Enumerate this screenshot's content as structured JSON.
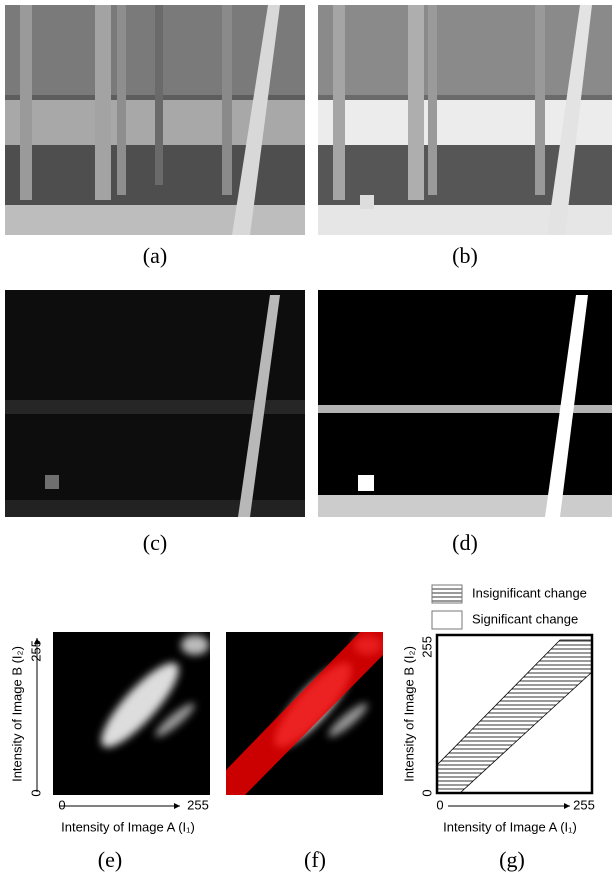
{
  "panels": {
    "a": {
      "caption": "(a)"
    },
    "b": {
      "caption": "(b)"
    },
    "c": {
      "caption": "(c)"
    },
    "d": {
      "caption": "(d)"
    },
    "e": {
      "caption": "(e)",
      "y_label": "Intensity of  Image B (I₂)",
      "x_label": "Intensity of  Image A (I₁)",
      "y_min": "0",
      "y_max": "255",
      "x_min": "0",
      "x_max": "255"
    },
    "f": {
      "caption": "(f)"
    },
    "g": {
      "caption": "(g)",
      "y_label": "Intensity of  Image B (I₂)",
      "x_label": "Intensity of  Image A (I₁)",
      "y_min": "0",
      "y_max": "255",
      "x_min": "0",
      "x_max": "255",
      "legend": [
        "Insignificant change",
        "Significant change"
      ]
    }
  }
}
